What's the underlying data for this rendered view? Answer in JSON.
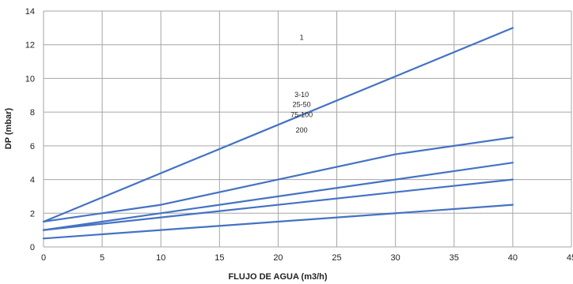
{
  "chart_data": {
    "type": "line",
    "xlabel": "FLUJO DE AGUA (m3/h)",
    "ylabel": "DP (mbar)",
    "xlim": [
      0,
      45
    ],
    "ylim": [
      0,
      14
    ],
    "xticks": [
      0,
      5,
      10,
      15,
      20,
      25,
      30,
      35,
      40,
      45
    ],
    "yticks": [
      0,
      2,
      4,
      6,
      8,
      10,
      12,
      14
    ],
    "grid": true,
    "legend": "none",
    "line_color": "#4472C4",
    "series": [
      {
        "x": [
          0,
          40
        ],
        "y": [
          1.5,
          13.0
        ]
      },
      {
        "x": [
          0,
          10,
          20,
          30,
          40
        ],
        "y": [
          1.5,
          2.5,
          4.0,
          5.5,
          6.5
        ]
      },
      {
        "x": [
          0,
          40
        ],
        "y": [
          1.0,
          5.0
        ]
      },
      {
        "x": [
          0,
          40
        ],
        "y": [
          1.0,
          4.0
        ]
      },
      {
        "x": [
          0,
          40
        ],
        "y": [
          0.5,
          2.5
        ]
      }
    ],
    "annotations": [
      {
        "text": "1",
        "x": 22,
        "y": 12.3
      },
      {
        "text": "3-10",
        "x": 22,
        "y": 8.9
      },
      {
        "text": "25-50",
        "x": 22,
        "y": 8.3
      },
      {
        "text": "75-100",
        "x": 22,
        "y": 7.7
      },
      {
        "text": "200",
        "x": 22,
        "y": 6.8
      }
    ]
  }
}
